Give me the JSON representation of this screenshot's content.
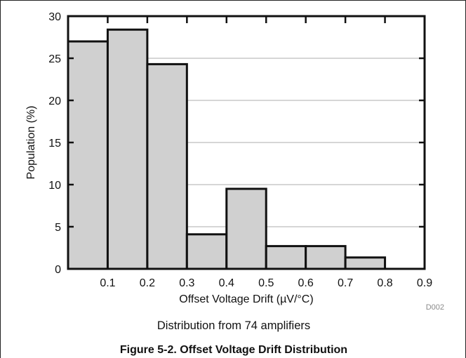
{
  "chart_data": {
    "type": "bar",
    "categories": [
      "0-0.1",
      "0.1-0.2",
      "0.2-0.3",
      "0.3-0.4",
      "0.4-0.5",
      "0.5-0.6",
      "0.6-0.7",
      "0.7-0.8"
    ],
    "bin_edges": [
      0,
      0.1,
      0.2,
      0.3,
      0.4,
      0.5,
      0.6,
      0.7,
      0.8
    ],
    "values": [
      27.0,
      28.4,
      24.3,
      4.1,
      9.5,
      2.7,
      2.7,
      1.35
    ],
    "xlabel": "Offset Voltage Drift (µV/°C)",
    "ylabel": "Population (%)",
    "xlim": [
      0,
      0.9
    ],
    "ylim": [
      0,
      30
    ],
    "x_tick_labels": [
      "0.1",
      "0.2",
      "0.3",
      "0.4",
      "0.5",
      "0.6",
      "0.7",
      "0.8",
      "0.9"
    ],
    "y_tick_labels": [
      "0",
      "5",
      "10",
      "15",
      "20",
      "25",
      "30"
    ],
    "grid": "horizontal",
    "bar_color": "#d0d0d0",
    "edge_color": "#111111"
  },
  "figure": {
    "code": "D002",
    "subtitle": "Distribution from 74 amplifiers",
    "caption": "Figure 5-2. Offset Voltage Drift Distribution"
  }
}
